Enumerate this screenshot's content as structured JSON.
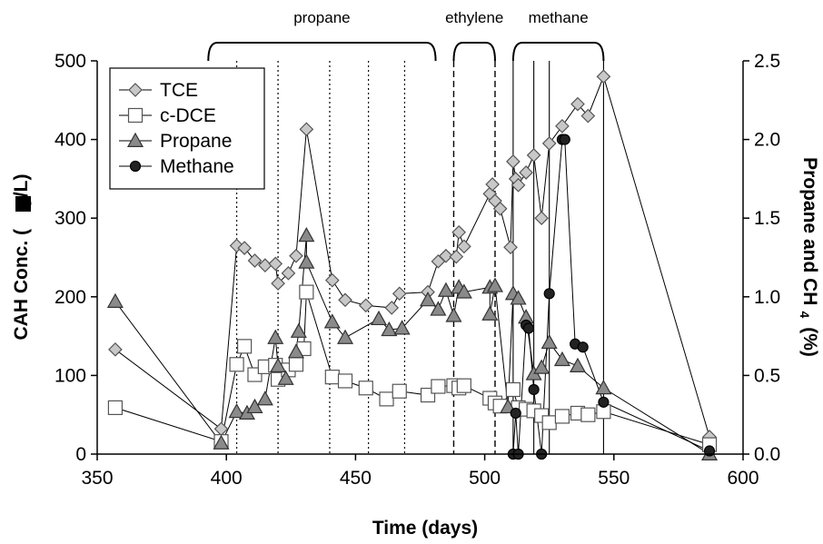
{
  "chart_data": {
    "type": "line",
    "xlabel": "Time (days)",
    "ylabel": "CAH Conc. (µg/L)",
    "ylabel_parts": [
      "CAH Conc. (",
      "g/L)"
    ],
    "y2label": "Propane and CH₄ (%)",
    "y2label_parts": [
      "Propane and CH",
      "4",
      "(%)"
    ],
    "xlim": [
      350,
      600
    ],
    "ylim": [
      0,
      500
    ],
    "y2lim": [
      0,
      2.5
    ],
    "x_ticks": [
      350,
      400,
      450,
      500,
      550,
      600
    ],
    "y_ticks": [
      0,
      100,
      200,
      300,
      400,
      500
    ],
    "y2_ticks": [
      "0.0",
      "0.5",
      "1.0",
      "1.5",
      "2.0",
      "2.5"
    ],
    "legend_position": "top-left",
    "phases": [
      {
        "label": "propane",
        "start": 393,
        "end": 481
      },
      {
        "label": "ethylene",
        "start": 488,
        "end": 504
      },
      {
        "label": "methane",
        "start": 511,
        "end": 546
      }
    ],
    "event_lines": {
      "dotted": [
        404,
        420,
        440,
        455,
        469
      ],
      "dashed": [
        488,
        504
      ],
      "solid": [
        511,
        519,
        525,
        546
      ]
    },
    "series": [
      {
        "name": "TCE",
        "axis": "left",
        "marker": "diamond",
        "points": [
          [
            357,
            133
          ],
          [
            398,
            32
          ],
          [
            404,
            265
          ],
          [
            407,
            262
          ],
          [
            411,
            246
          ],
          [
            415,
            240
          ],
          [
            419,
            242
          ],
          [
            420,
            217
          ],
          [
            424,
            230
          ],
          [
            427,
            252
          ],
          [
            431,
            413
          ],
          [
            441,
            221
          ],
          [
            446,
            196
          ],
          [
            454,
            189
          ],
          [
            464,
            186
          ],
          [
            467,
            204
          ],
          [
            478,
            206
          ],
          [
            482,
            245
          ],
          [
            485,
            252
          ],
          [
            489,
            251
          ],
          [
            490,
            282
          ],
          [
            492,
            264
          ],
          [
            502,
            331
          ],
          [
            503,
            343
          ],
          [
            504,
            322
          ],
          [
            506,
            312
          ],
          [
            510,
            263
          ],
          [
            511,
            372
          ],
          [
            512,
            350
          ],
          [
            513,
            342
          ],
          [
            516,
            358
          ],
          [
            519,
            380
          ],
          [
            522,
            300
          ],
          [
            525,
            395
          ],
          [
            530,
            417
          ],
          [
            536,
            445
          ],
          [
            540,
            430
          ],
          [
            546,
            480
          ],
          [
            587,
            22
          ]
        ]
      },
      {
        "name": "c-DCE",
        "axis": "left",
        "marker": "square",
        "points": [
          [
            357,
            59
          ],
          [
            398,
            16
          ],
          [
            404,
            114
          ],
          [
            407,
            137
          ],
          [
            411,
            101
          ],
          [
            415,
            111
          ],
          [
            419,
            113
          ],
          [
            420,
            95
          ],
          [
            424,
            107
          ],
          [
            427,
            114
          ],
          [
            430,
            134
          ],
          [
            431,
            206
          ],
          [
            441,
            98
          ],
          [
            446,
            93
          ],
          [
            454,
            84
          ],
          [
            462,
            70
          ],
          [
            467,
            80
          ],
          [
            478,
            75
          ],
          [
            482,
            86
          ],
          [
            488,
            87
          ],
          [
            490,
            84
          ],
          [
            492,
            87
          ],
          [
            502,
            71
          ],
          [
            504,
            65
          ],
          [
            506,
            61
          ],
          [
            511,
            82
          ],
          [
            513,
            59
          ],
          [
            516,
            57
          ],
          [
            519,
            55
          ],
          [
            522,
            49
          ],
          [
            525,
            40
          ],
          [
            530,
            48
          ],
          [
            536,
            52
          ],
          [
            540,
            50
          ],
          [
            546,
            54
          ],
          [
            587,
            12
          ]
        ]
      },
      {
        "name": "Propane",
        "axis": "right",
        "marker": "triangle",
        "points": [
          [
            357,
            0.97
          ],
          [
            398,
            0.07
          ],
          [
            404,
            0.27
          ],
          [
            408,
            0.26
          ],
          [
            411,
            0.3
          ],
          [
            415,
            0.35
          ],
          [
            419,
            0.74
          ],
          [
            420,
            0.56
          ],
          [
            423,
            0.48
          ],
          [
            427,
            0.65
          ],
          [
            428,
            0.78
          ],
          [
            431,
            1.39
          ],
          [
            431,
            1.22
          ],
          [
            441,
            0.84
          ],
          [
            446,
            0.74
          ],
          [
            459,
            0.86
          ],
          [
            463,
            0.79
          ],
          [
            468,
            0.8
          ],
          [
            478,
            0.98
          ],
          [
            482,
            0.92
          ],
          [
            485,
            1.04
          ],
          [
            488,
            0.88
          ],
          [
            490,
            1.06
          ],
          [
            492,
            1.03
          ],
          [
            502,
            1.06
          ],
          [
            502,
            0.89
          ],
          [
            504,
            1.07
          ],
          [
            509,
            0.3
          ],
          [
            511,
            1.02
          ],
          [
            513,
            0.99
          ],
          [
            516,
            0.87
          ],
          [
            519,
            0.51
          ],
          [
            522,
            0.55
          ],
          [
            525,
            0.71
          ],
          [
            530,
            0.6
          ],
          [
            536,
            0.56
          ],
          [
            546,
            0.42
          ],
          [
            587,
            0.0
          ]
        ]
      },
      {
        "name": "Methane",
        "axis": "right",
        "marker": "circle",
        "points": [
          [
            511,
            0.0
          ],
          [
            512,
            0.26
          ],
          [
            513,
            0.0
          ],
          [
            516,
            0.82
          ],
          [
            517,
            0.8
          ],
          [
            519,
            0.41
          ],
          [
            522,
            0.0
          ],
          [
            525,
            1.02
          ],
          [
            530,
            2.0
          ],
          [
            531,
            2.0
          ],
          [
            535,
            0.7
          ],
          [
            538,
            0.68
          ],
          [
            546,
            0.33
          ],
          [
            587,
            0.02
          ]
        ]
      }
    ]
  }
}
